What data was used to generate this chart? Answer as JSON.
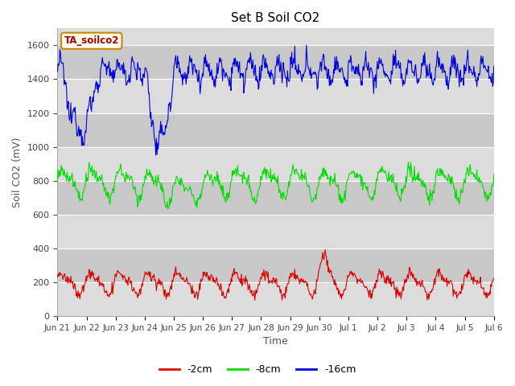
{
  "title": "Set B Soil CO2",
  "xlabel": "Time",
  "ylabel": "Soil CO2 (mV)",
  "plot_bg_color": "#dcdcdc",
  "fig_bg_color": "#ffffff",
  "band_colors": [
    "#dcdcdc",
    "#c8c8c8"
  ],
  "ylim": [
    0,
    1700
  ],
  "yticks": [
    0,
    200,
    400,
    600,
    800,
    1000,
    1200,
    1400,
    1600
  ],
  "legend_label": "TA_soilco2",
  "series": {
    "blue": {
      "label": "-16cm",
      "color": "#0000dd",
      "base": 1450,
      "amplitude": 50,
      "noise": 30
    },
    "green": {
      "label": "-8cm",
      "color": "#00dd00",
      "base": 790,
      "amplitude": 70,
      "noise": 20
    },
    "red": {
      "label": "-2cm",
      "color": "#dd0000",
      "base": 195,
      "amplitude": 55,
      "noise": 15
    }
  },
  "xtick_labels": [
    "Jun 21",
    "Jun 22",
    "Jun 23",
    "Jun 24",
    "Jun 25",
    "Jun 26",
    "Jun 27",
    "Jun 28",
    "Jun 29",
    "Jun 30",
    "Jul 1",
    "Jul 2",
    "Jul 3",
    "Jul 4",
    "Jul 5",
    "Jul 6"
  ],
  "n_points": 720
}
